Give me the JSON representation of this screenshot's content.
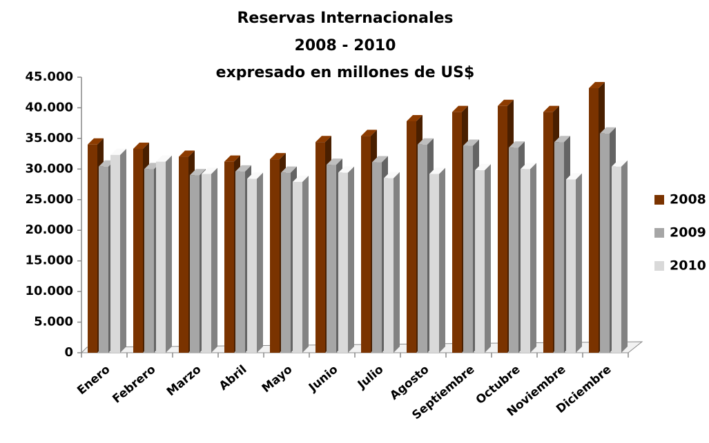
{
  "chart_data": {
    "type": "bar3d",
    "title": [
      "Reservas Internacionales",
      "2008 - 2010",
      "expresado en millones de US$"
    ],
    "categories": [
      "Enero",
      "Febrero",
      "Marzo",
      "Abril",
      "Mayo",
      "Junio",
      "Julio",
      "Agosto",
      "Septiembre",
      "Octubre",
      "Noviembre",
      "Diciembre"
    ],
    "series": [
      {
        "name": "2008",
        "color": "#7a3300",
        "values": [
          34000,
          33300,
          32000,
          31200,
          31600,
          34400,
          35400,
          37800,
          39300,
          40300,
          39300,
          43200
        ]
      },
      {
        "name": "2009",
        "color": "#a6a6a6",
        "values": [
          30400,
          30000,
          29000,
          29600,
          29400,
          30700,
          31100,
          34000,
          33800,
          33500,
          34400,
          35800
        ]
      },
      {
        "name": "2010",
        "color": "#d9d9d9",
        "values": [
          32300,
          31200,
          29200,
          28400,
          27900,
          29400,
          28500,
          29200,
          29800,
          30000,
          28300,
          30400
        ]
      }
    ],
    "ylim": [
      0,
      45000
    ],
    "yticks": [
      0,
      {
        "value": 5000,
        "label": "5.000"
      },
      {
        "value": 10000,
        "label": "10.000"
      },
      {
        "value": 15000,
        "label": "15.000"
      },
      {
        "value": 20000,
        "label": "20.000"
      },
      {
        "value": 25000,
        "label": "25.000"
      },
      {
        "value": 30000,
        "label": "30.000"
      },
      {
        "value": 35000,
        "label": "35.000"
      },
      {
        "value": 40000,
        "label": "40.000"
      },
      {
        "value": 45000,
        "label": "45.000"
      }
    ],
    "legend": "right"
  }
}
